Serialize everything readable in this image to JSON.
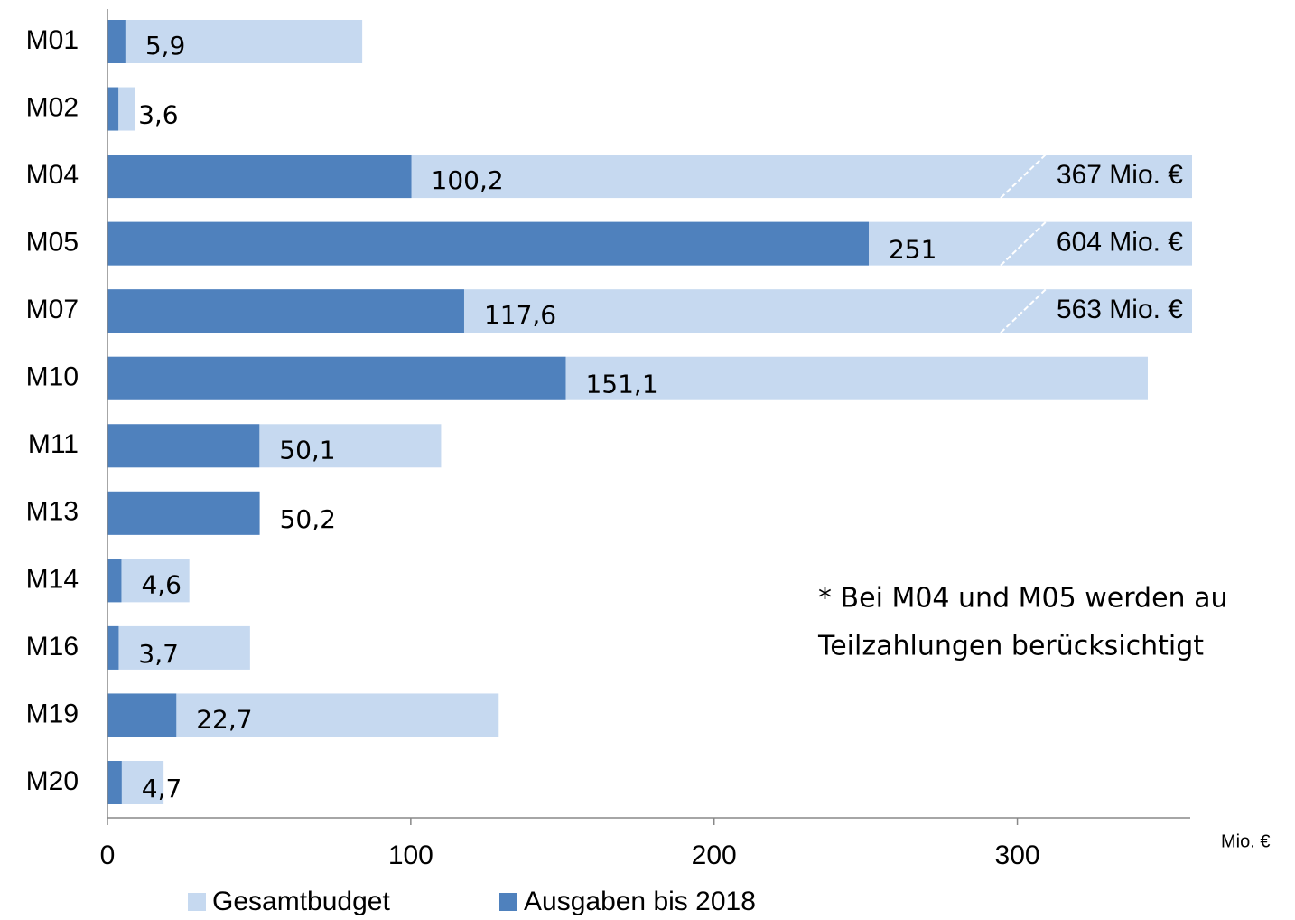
{
  "chart_data": {
    "type": "bar",
    "categories": [
      "M01",
      "M02",
      "M04",
      "M05",
      "M07",
      "M10",
      "M11",
      "M13",
      "M14",
      "M16",
      "M19",
      "M20"
    ],
    "series": [
      {
        "name": "Gesamtbudget",
        "color": "#c6d9f0",
        "values": [
          84,
          9,
          367,
          604,
          563,
          343,
          110,
          50,
          27,
          47,
          129,
          18.5
        ],
        "value_labels": [
          null,
          null,
          "367 Mio. €",
          "604 Mio. €",
          "563 Mio. €",
          null,
          null,
          null,
          null,
          null,
          null,
          null
        ]
      },
      {
        "name": "Ausgaben bis 2018",
        "color": "#4f81bd",
        "values": [
          5.9,
          3.6,
          100.2,
          251,
          117.6,
          151.1,
          50.1,
          50.2,
          4.6,
          3.7,
          22.7,
          4.7
        ],
        "value_labels": [
          "5,9",
          "3,6",
          "100,2",
          "251",
          "117,6",
          "151,1",
          "50,1",
          "50,2",
          "4,6",
          "3,7",
          "22,7",
          "4,7"
        ]
      }
    ],
    "xlim": [
      0,
      357
    ],
    "xticks": [
      0,
      100,
      200,
      300
    ],
    "x_unit": "Mio. €",
    "annotation": [
      "* Bei  M04 und M05 werden au",
      "Teilzahlungen berücksichtigt"
    ],
    "overlap": true
  }
}
